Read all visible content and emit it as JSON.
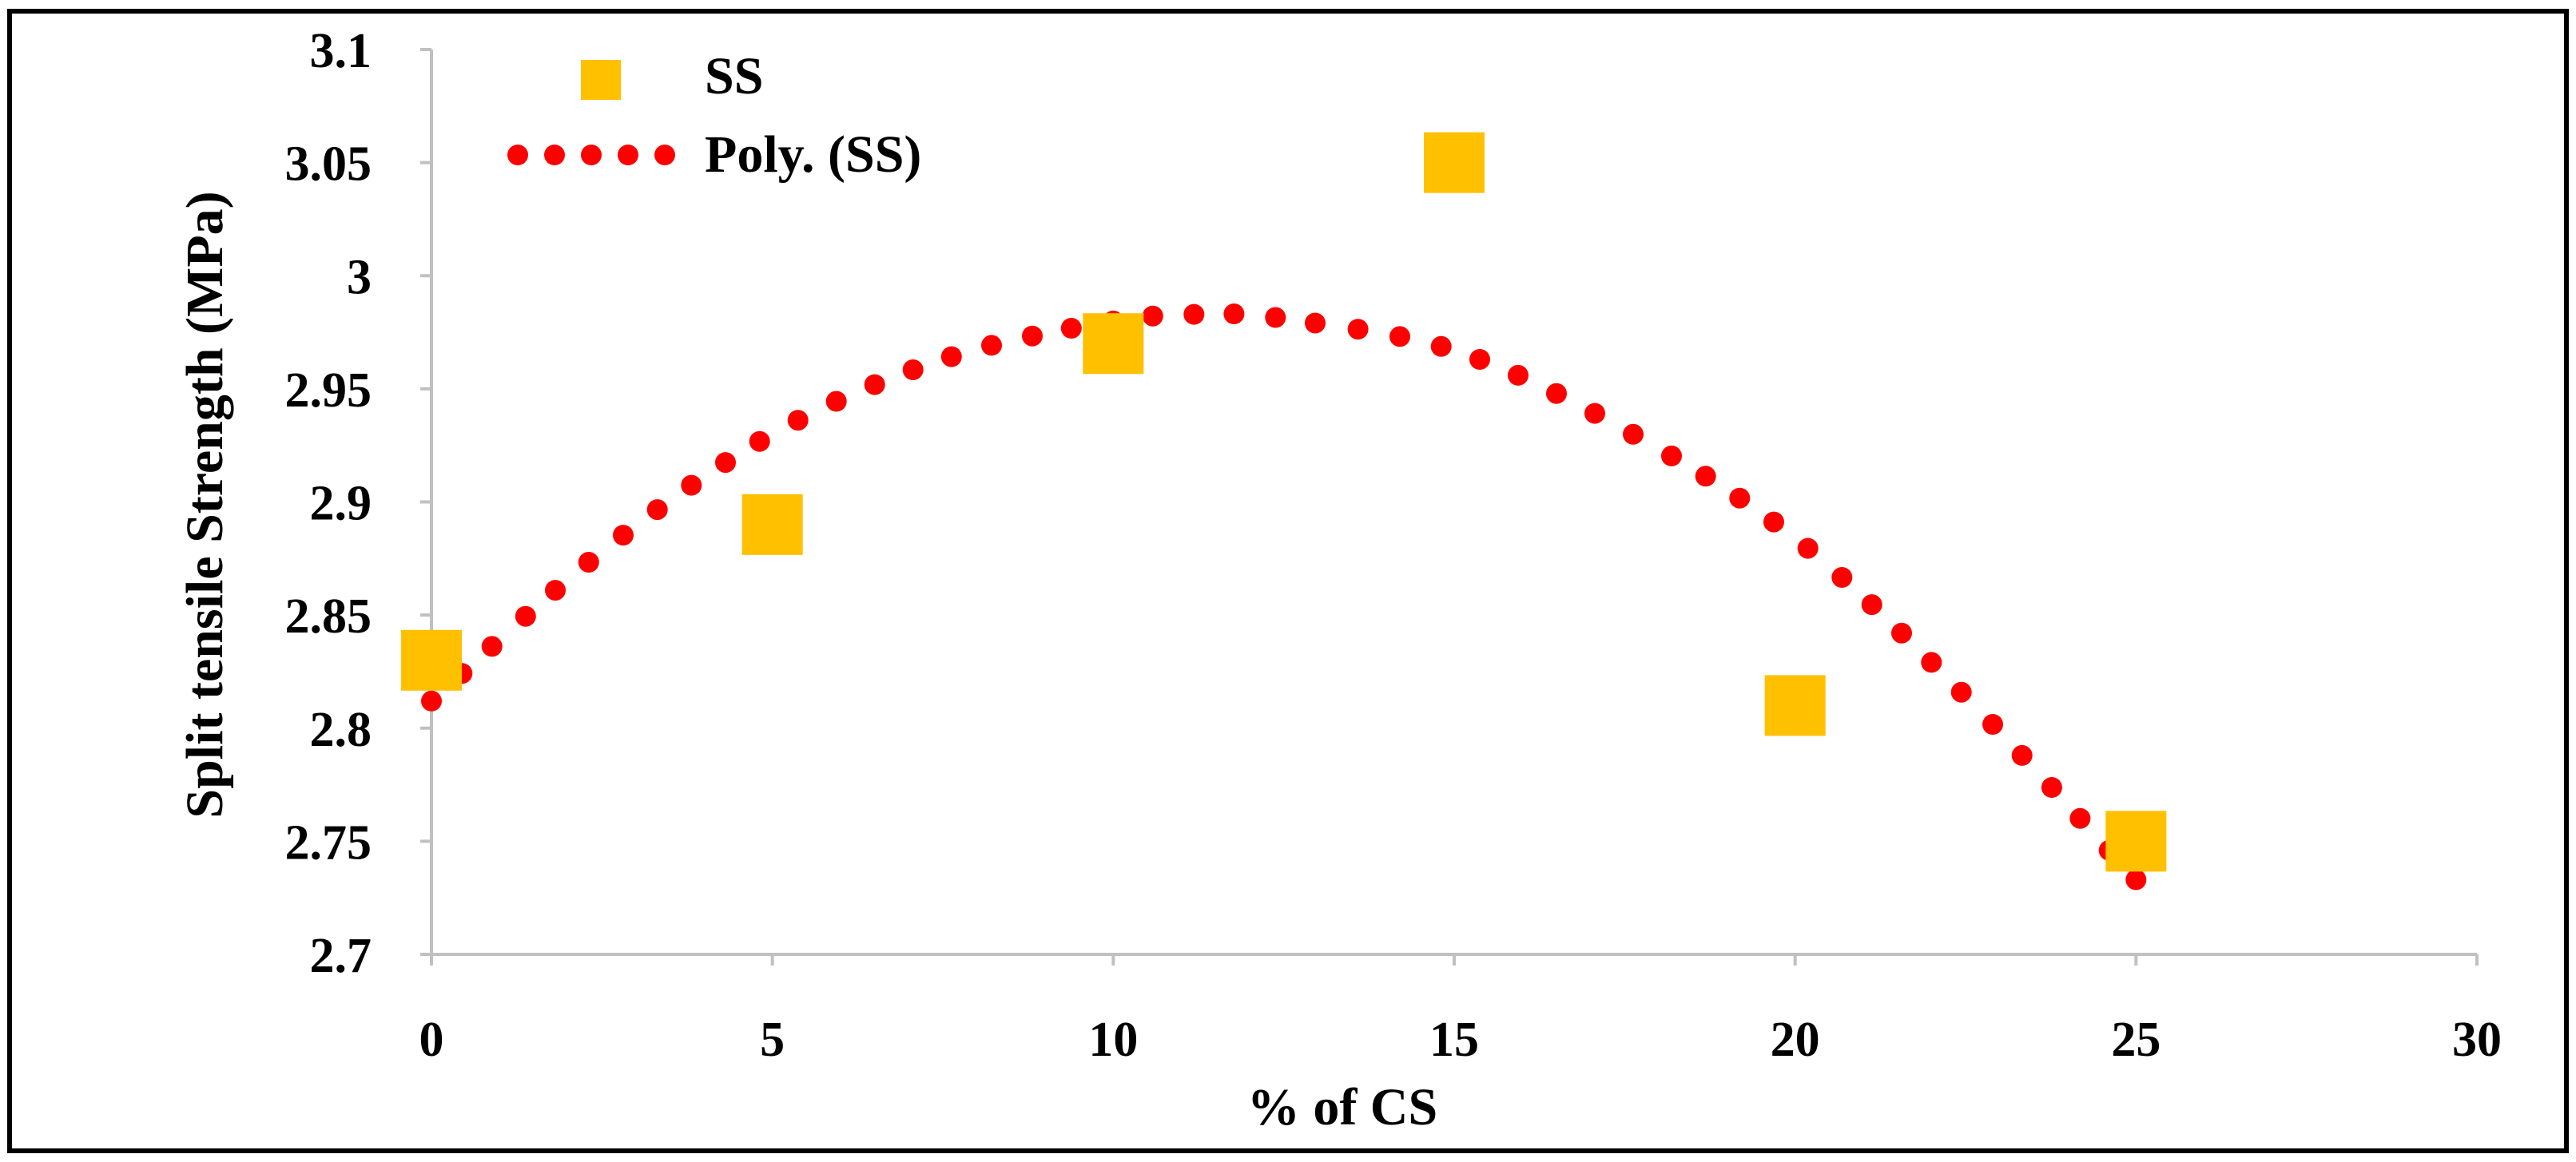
{
  "colors": {
    "marker": "#FFC000",
    "trendline": "#FF0000",
    "axis": "#C0C0C0",
    "text": "#000000",
    "frame": "#000000"
  },
  "chart_data": {
    "type": "scatter",
    "title": "",
    "xlabel": "% of CS",
    "ylabel": "Split tensile Strength (MPa)",
    "xlim": [
      0,
      30
    ],
    "ylim": [
      2.7,
      3.1
    ],
    "xticks": [
      "0",
      "5",
      "10",
      "15",
      "20",
      "25",
      "30"
    ],
    "yticks": [
      "2.7",
      "2.75",
      "2.8",
      "2.85",
      "2.9",
      "2.95",
      "3",
      "3.05",
      "3.1"
    ],
    "grid": false,
    "legend_position": "top-left",
    "series": [
      {
        "name": "SS",
        "type": "scatter",
        "marker": "square",
        "x": [
          0,
          5,
          10,
          15,
          20,
          25
        ],
        "y": [
          2.83,
          2.89,
          2.97,
          3.05,
          2.81,
          2.75
        ]
      }
    ],
    "trendline": {
      "name": "Poly. (SS)",
      "type": "polynomial",
      "style": "dotted",
      "points": [
        [
          0,
          2.812
        ],
        [
          2.5,
          2.878
        ],
        [
          5,
          2.93
        ],
        [
          7.5,
          2.963
        ],
        [
          10,
          2.98
        ],
        [
          11.5,
          2.983
        ],
        [
          12.5,
          2.981
        ],
        [
          15,
          2.967
        ],
        [
          17.5,
          2.932
        ],
        [
          20,
          2.884
        ],
        [
          22.5,
          2.814
        ],
        [
          25,
          2.733
        ]
      ]
    }
  }
}
